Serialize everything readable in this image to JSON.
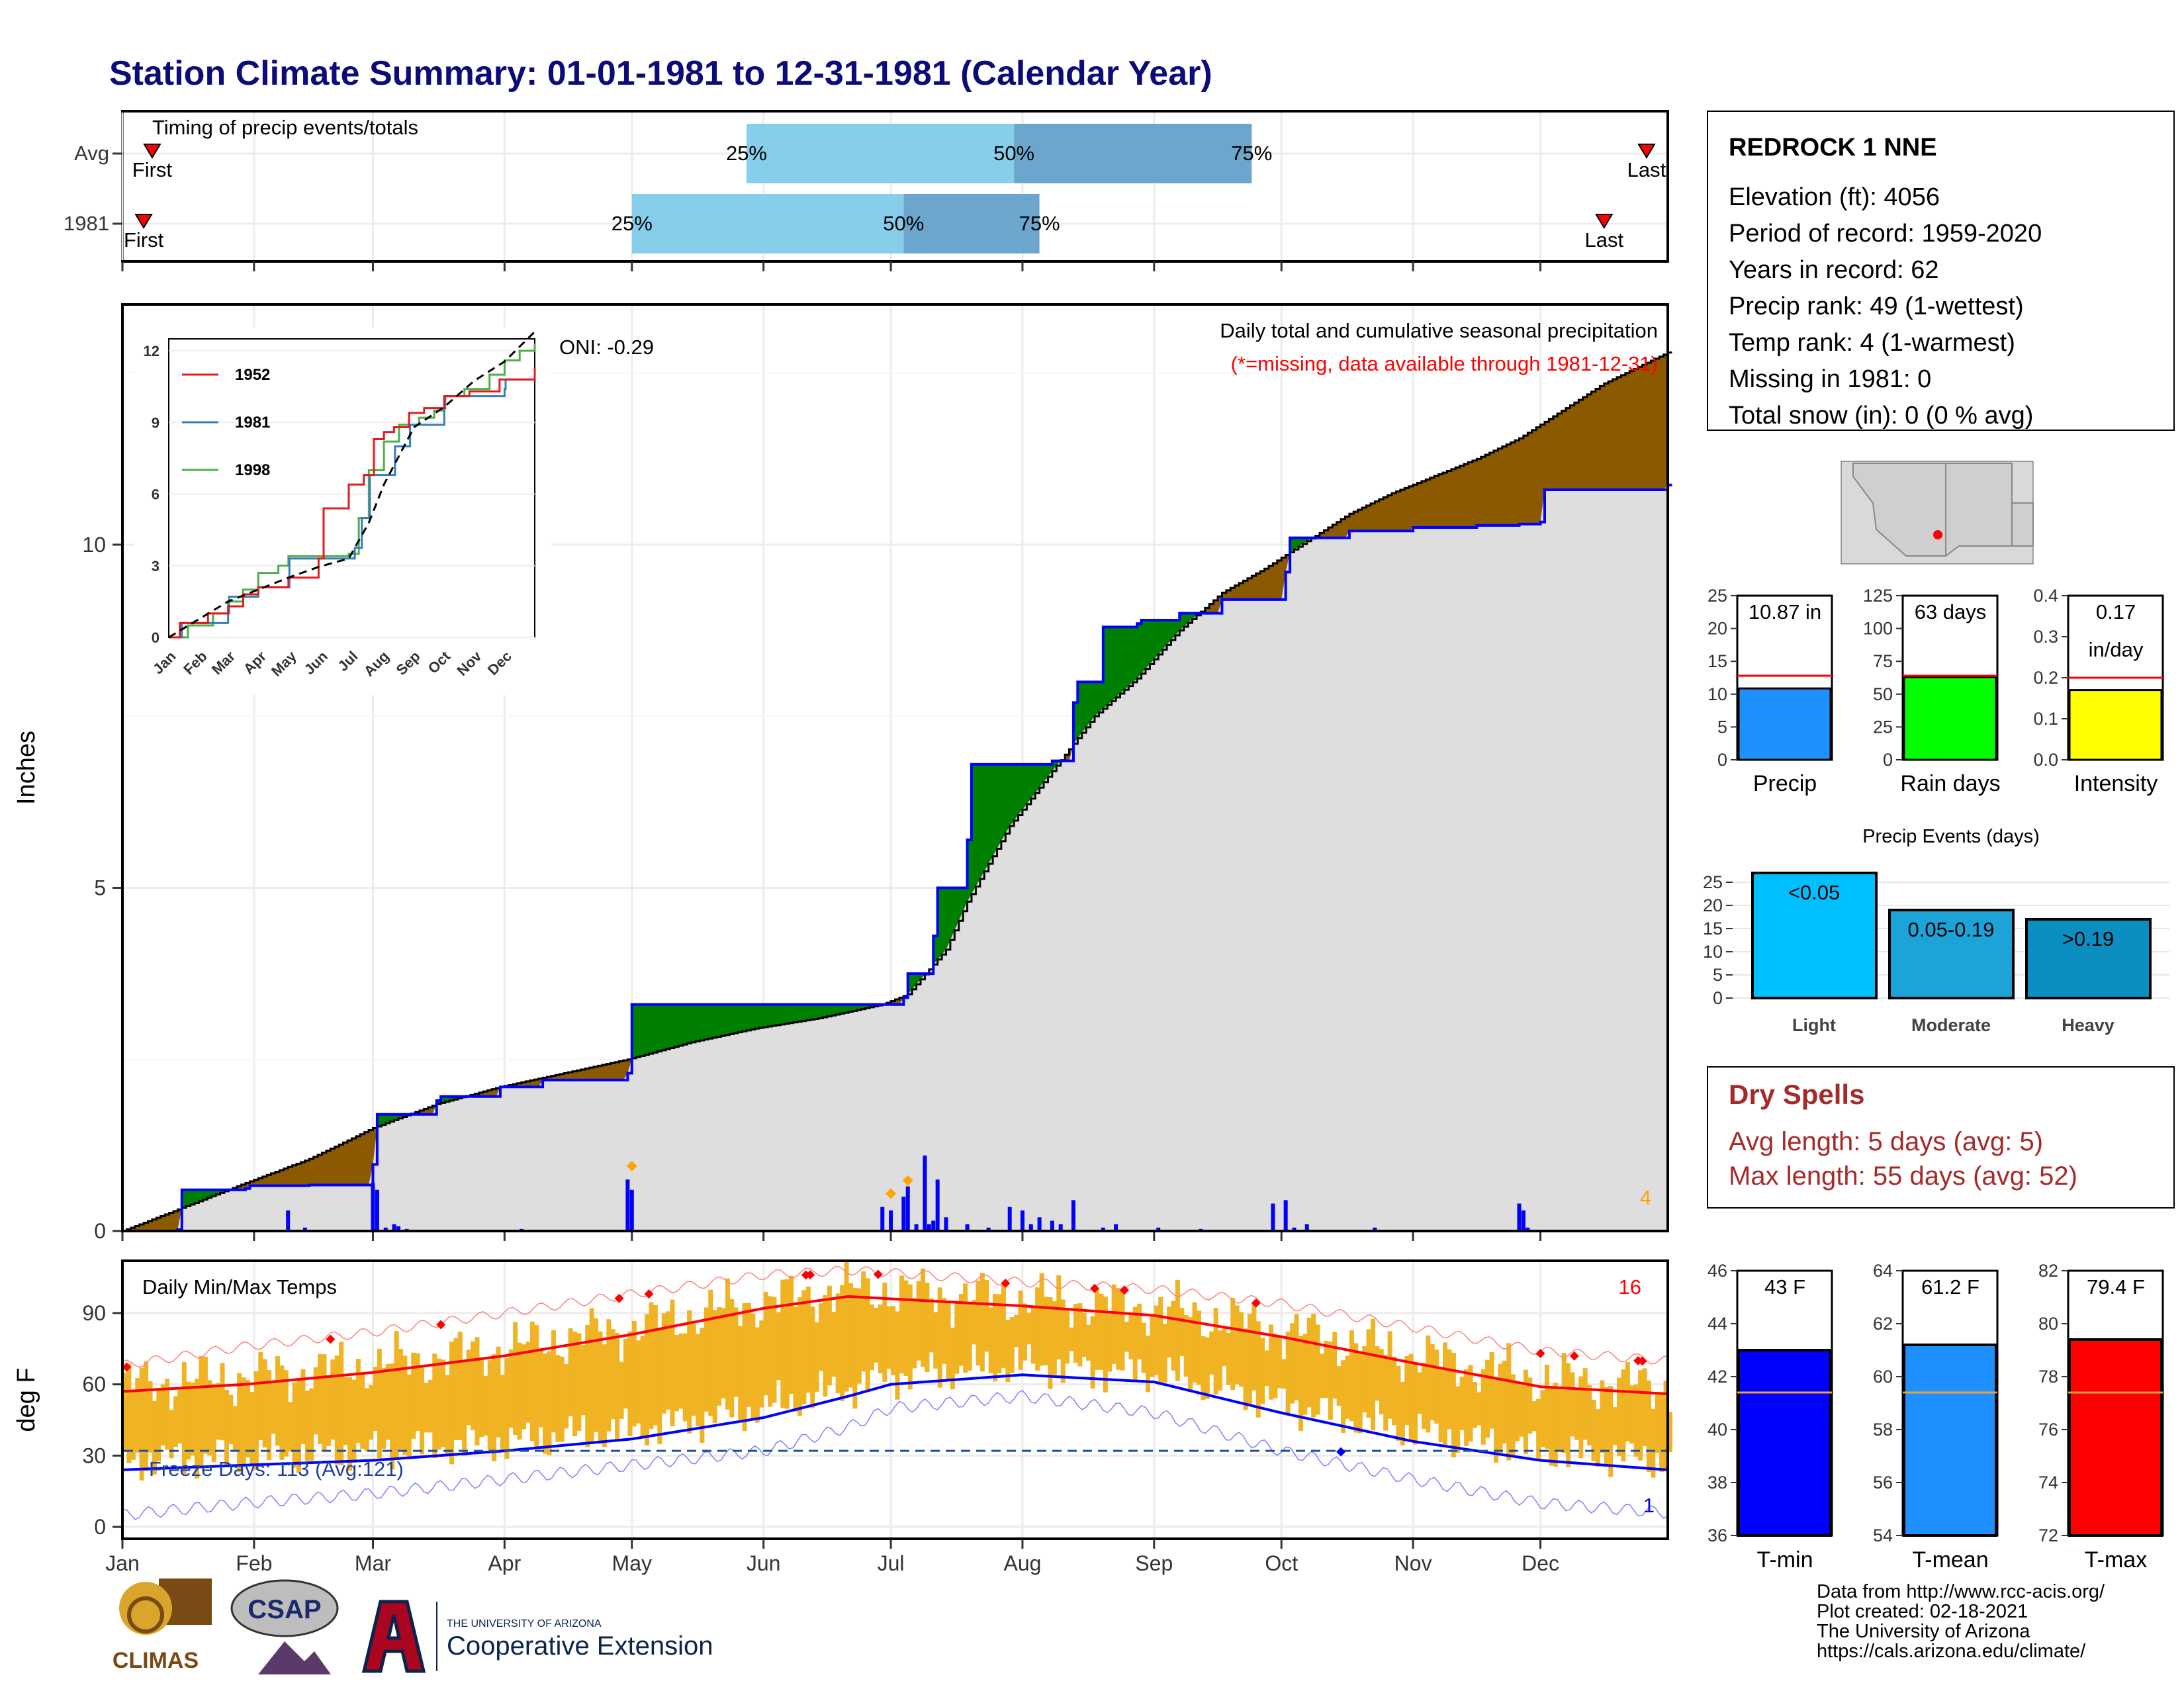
{
  "title": "Station Climate Summary: 01-01-1981 to 12-31-1981 (Calendar Year)",
  "colors": {
    "title": "#0b0b7a",
    "light_blue": "#87ceeb",
    "steel": "#6ca6cd",
    "brown": "#8b5a00",
    "green": "#008000",
    "blue": "#0000ff",
    "gray": "#dedede",
    "orange": "#f0b323",
    "red": "#ff0000",
    "dry": "#a52a2a",
    "tmean": "#1e90ff",
    "rain": "#00ff00",
    "intensity": "#ffff00",
    "light_events": "#00bfff",
    "moderate_events": "#1ca3d8",
    "heavy_events": "#0a8fc0"
  },
  "timing": {
    "title": "Timing of precip events/totals",
    "rows": [
      {
        "label": "Avg",
        "first_label": "First",
        "last_label": "Last",
        "first_doy": 8,
        "last_doy": 360,
        "q25_doy": 148,
        "q50_doy": 211,
        "q75_doy": 267,
        "p25": "25%",
        "p50": "50%",
        "p75": "75%"
      },
      {
        "label": "1981",
        "first_label": "First",
        "last_label": "Last",
        "first_doy": 6,
        "last_doy": 350,
        "q25_doy": 121,
        "q50_doy": 185,
        "q75_doy": 217,
        "p25": "25%",
        "p50": "50%",
        "p75": "75%"
      }
    ]
  },
  "precip_panel": {
    "ylabel": "Inches",
    "caption": "Daily total and cumulative seasonal precipitation",
    "missing_note": "(*=missing, data available through 1981-12-31)",
    "oni": "ONI: -0.29",
    "count_label": "4",
    "yticks": [
      "0",
      "5",
      "10"
    ]
  },
  "inset": {
    "yticks": [
      "0",
      "3",
      "6",
      "9",
      "12"
    ],
    "xticks": [
      "Jan",
      "Feb",
      "Mar",
      "Apr",
      "May",
      "Jun",
      "Jul",
      "Aug",
      "Sep",
      "Oct",
      "Nov",
      "Dec"
    ],
    "legend": [
      {
        "name": "1952",
        "color": "#e41a1c"
      },
      {
        "name": "1981",
        "color": "#377eb8"
      },
      {
        "name": "1998",
        "color": "#4daf4a"
      }
    ]
  },
  "temp_panel": {
    "ylabel": "deg F",
    "title": "Daily Min/Max Temps",
    "count_label": "16",
    "freeze_label": "Freeze Days: 113 (Avg:121)",
    "min_count_label": "1",
    "yticks": [
      "0",
      "30",
      "60",
      "90"
    ]
  },
  "months": [
    "Jan",
    "Feb",
    "Mar",
    "Apr",
    "May",
    "Jun",
    "Jul",
    "Aug",
    "Sep",
    "Oct",
    "Nov",
    "Dec"
  ],
  "station": {
    "name": "REDROCK 1 NNE",
    "lines": [
      "Elevation (ft): 4056",
      "Period of record: 1959-2020",
      "Years in record: 62",
      "Precip rank: 49 (1-wettest)",
      "Temp rank: 4 (1-warmest)",
      "Missing in 1981: 0",
      "Total snow (in): 0 (0 % avg)"
    ]
  },
  "summary_bars": [
    {
      "label": "Precip",
      "value_text": "10.87 in",
      "value": 10.87,
      "avg": 12.8,
      "max": 25,
      "ticks": [
        "0",
        "5",
        "10",
        "15",
        "20",
        "25"
      ],
      "color": "#1e90ff"
    },
    {
      "label": "Rain days",
      "value_text": "63 days",
      "value": 63,
      "avg": 64,
      "max": 125,
      "ticks": [
        "0",
        "25",
        "50",
        "75",
        "100",
        "125"
      ],
      "color": "#00ff00"
    },
    {
      "label": "Intensity",
      "value_text": "0.17",
      "value_text2": "in/day",
      "value": 0.17,
      "avg": 0.2,
      "max": 0.4,
      "ticks": [
        "0.0",
        "0.1",
        "0.2",
        "0.3",
        "0.4"
      ],
      "color": "#ffff00"
    }
  ],
  "precip_events": {
    "title": "Precip Events (days)",
    "yticks": [
      "0",
      "5",
      "10",
      "15",
      "20",
      "25"
    ],
    "bars": [
      {
        "label": "Light",
        "inner": "<0.05",
        "value": 27
      },
      {
        "label": "Moderate",
        "inner": "0.05-0.19",
        "value": 19
      },
      {
        "label": "Heavy",
        "inner": ">0.19",
        "value": 17
      }
    ]
  },
  "dry_spells": {
    "title": "Dry Spells",
    "avg_line": "Avg length: 5 days (avg: 5)",
    "max_line": "Max length: 55 days (avg: 52)"
  },
  "temp_bars": [
    {
      "label": "T-min",
      "value_text": "43 F",
      "value": 43.0,
      "avg": 41.4,
      "min": 36,
      "max": 46,
      "ticks": [
        "36",
        "38",
        "40",
        "42",
        "44",
        "46"
      ],
      "color": "#0000ff"
    },
    {
      "label": "T-mean",
      "value_text": "61.2 F",
      "value": 61.2,
      "avg": 59.4,
      "min": 54,
      "max": 64,
      "ticks": [
        "54",
        "56",
        "58",
        "60",
        "62",
        "64"
      ],
      "color": "#1e90ff"
    },
    {
      "label": "T-max",
      "value_text": "79.4 F",
      "value": 79.4,
      "avg": 77.4,
      "min": 72,
      "max": 82,
      "ticks": [
        "72",
        "74",
        "76",
        "78",
        "80",
        "82"
      ],
      "color": "#ff0000"
    }
  ],
  "footer": {
    "lines": [
      "Data from http://www.rcc-acis.org/",
      "Plot created: 02-18-2021",
      "The University of Arizona",
      "https://cals.arizona.edu/climate/"
    ]
  },
  "logos": {
    "climas": "CLIMAS",
    "csap": "CSAP",
    "ua_small": "THE UNIVERSITY OF ARIZONA",
    "ua_big": "Cooperative Extension"
  },
  "chart_data": [
    {
      "type": "area",
      "title": "Daily total and cumulative seasonal precipitation",
      "ylabel": "Inches",
      "ylim": [
        0,
        13.5
      ],
      "x_unit": "day of year",
      "series": [
        {
          "name": "1981",
          "x": [
            1,
            14,
            15,
            30,
            31,
            45,
            60,
            61,
            75,
            76,
            90,
            100,
            120,
            121,
            185,
            186,
            191,
            192,
            193,
            200,
            201,
            220,
            225,
            226,
            232,
            240,
            241,
            250,
            260,
            275,
            276,
            290,
            305,
            320,
            330,
            335,
            336,
            365
          ],
          "y": [
            0.0,
            0.02,
            0.6,
            0.62,
            0.66,
            0.67,
            0.97,
            1.7,
            1.9,
            1.96,
            2.1,
            2.2,
            2.3,
            3.3,
            3.4,
            3.75,
            3.75,
            4.3,
            5.0,
            5.7,
            6.8,
            6.85,
            7.7,
            8.0,
            8.8,
            8.85,
            8.9,
            9.0,
            9.2,
            9.6,
            10.1,
            10.2,
            10.25,
            10.28,
            10.3,
            10.33,
            10.8,
            10.87
          ]
        },
        {
          "name": "Avg",
          "x": [
            1,
            30,
            45,
            60,
            75,
            90,
            105,
            120,
            135,
            150,
            165,
            180,
            186,
            195,
            200,
            210,
            220,
            230,
            240,
            250,
            260,
            270,
            280,
            290,
            300,
            310,
            320,
            330,
            340,
            350,
            365
          ],
          "y": [
            0.0,
            0.7,
            1.05,
            1.5,
            1.85,
            2.1,
            2.3,
            2.5,
            2.75,
            2.95,
            3.1,
            3.3,
            3.45,
            4.1,
            4.8,
            5.9,
            6.7,
            7.5,
            8.05,
            8.75,
            9.3,
            9.65,
            10.05,
            10.45,
            10.75,
            11.0,
            11.25,
            11.55,
            11.95,
            12.35,
            12.8
          ]
        }
      ],
      "daily_precip": {
        "x": [
          12,
          13,
          40,
          44,
          60,
          61,
          63,
          65,
          66,
          68,
          95,
          120,
          121,
          180,
          182,
          185,
          186,
          188,
          190,
          191,
          192,
          193,
          195,
          200,
          205,
          210,
          213,
          215,
          217,
          220,
          222,
          225,
          232,
          235,
          245,
          255,
          272,
          275,
          277,
          280,
          296,
          330,
          331,
          332
        ],
        "y": [
          0.01,
          0.02,
          0.3,
          0.05,
          0.7,
          0.6,
          0.05,
          0.1,
          0.07,
          0.03,
          0.03,
          0.75,
          0.6,
          0.35,
          0.3,
          0.5,
          0.65,
          0.1,
          1.1,
          0.1,
          0.15,
          0.75,
          0.2,
          0.1,
          0.05,
          0.35,
          0.3,
          0.1,
          0.2,
          0.15,
          0.1,
          0.45,
          0.05,
          0.1,
          0.05,
          0.03,
          0.4,
          0.45,
          0.05,
          0.1,
          0.05,
          0.4,
          0.3,
          0.05
        ]
      }
    },
    {
      "type": "line",
      "title": "Daily Min/Max Temps",
      "ylabel": "deg F",
      "ylim": [
        -5,
        112
      ],
      "x_unit": "day of year",
      "series": [
        {
          "name": "Avg max",
          "x": [
            1,
            30,
            60,
            91,
            121,
            152,
            172,
            182,
            213,
            244,
            274,
            305,
            335,
            365
          ],
          "y": [
            57,
            60,
            65,
            72,
            81,
            92,
            97,
            96,
            93,
            89,
            80,
            69,
            59,
            56
          ]
        },
        {
          "name": "Avg min",
          "x": [
            1,
            30,
            60,
            91,
            121,
            152,
            172,
            182,
            213,
            244,
            274,
            305,
            335,
            365
          ],
          "y": [
            24,
            26,
            28,
            32,
            37,
            46,
            55,
            60,
            64,
            61,
            48,
            36,
            28,
            24
          ]
        },
        {
          "name": "Record max",
          "x": [
            1,
            30,
            60,
            91,
            121,
            152,
            172,
            182,
            213,
            244,
            274,
            305,
            335,
            365
          ],
          "y": [
            68,
            76,
            82,
            90,
            98,
            106,
            108,
            107,
            103,
            100,
            94,
            84,
            74,
            70
          ]
        },
        {
          "name": "Record min",
          "x": [
            1,
            30,
            60,
            91,
            121,
            152,
            172,
            182,
            213,
            244,
            274,
            305,
            335,
            365
          ],
          "y": [
            5,
            10,
            14,
            20,
            26,
            32,
            42,
            50,
            55,
            48,
            32,
            20,
            10,
            6
          ]
        }
      ],
      "freeze_line": 32,
      "record_highs_doy": [
        2,
        50,
        76,
        118,
        125,
        162,
        163,
        179,
        209,
        230,
        237,
        268,
        335,
        343,
        358,
        359
      ],
      "record_low_doy": [
        288
      ]
    }
  ]
}
